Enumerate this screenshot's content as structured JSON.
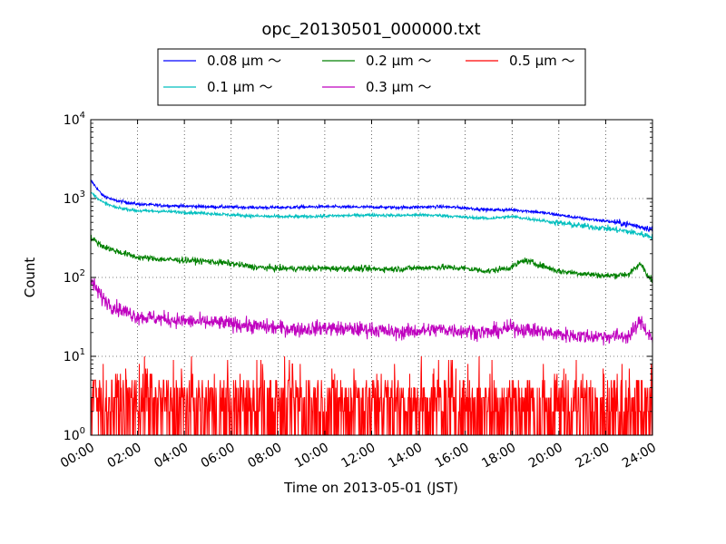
{
  "chart_data": {
    "type": "line",
    "title": "opc_20130501_000000.txt",
    "xlabel": "Time on 2013-05-01 (JST)",
    "ylabel": "Count",
    "y_scale": "log",
    "ylim": [
      1,
      10000
    ],
    "x_unit": "hours",
    "xlim": [
      0,
      24
    ],
    "x_tick_labels": [
      "00:00",
      "02:00",
      "04:00",
      "06:00",
      "08:00",
      "10:00",
      "12:00",
      "14:00",
      "16:00",
      "18:00",
      "20:00",
      "22:00",
      "24:00"
    ],
    "y_tick_labels": [
      {
        "base": "10",
        "exp": "0"
      },
      {
        "base": "10",
        "exp": "1"
      },
      {
        "base": "10",
        "exp": "2"
      },
      {
        "base": "10",
        "exp": "3"
      },
      {
        "base": "10",
        "exp": "4"
      }
    ],
    "grid": true,
    "legend_position": "top",
    "series": [
      {
        "name": "0.08 μm ～",
        "color": "#0000ff",
        "x": [
          0,
          0.5,
          1,
          2,
          3,
          4,
          5,
          6,
          7,
          8,
          9,
          10,
          11,
          12,
          13,
          14,
          15,
          16,
          17,
          18,
          19,
          20,
          21,
          22,
          23,
          24
        ],
        "y": [
          1700,
          1100,
          950,
          850,
          820,
          800,
          790,
          780,
          770,
          770,
          780,
          790,
          780,
          780,
          770,
          780,
          790,
          760,
          720,
          720,
          680,
          620,
          560,
          520,
          470,
          410
        ]
      },
      {
        "name": "0.1 μm ～",
        "color": "#00bfbf",
        "x": [
          0,
          0.5,
          1,
          2,
          3,
          4,
          5,
          6,
          7,
          8,
          9,
          10,
          11,
          12,
          13,
          14,
          15,
          16,
          17,
          18,
          19,
          20,
          21,
          22,
          23,
          24
        ],
        "y": [
          1200,
          900,
          780,
          700,
          690,
          670,
          650,
          620,
          600,
          590,
          590,
          600,
          610,
          620,
          610,
          620,
          610,
          580,
          560,
          590,
          540,
          490,
          450,
          420,
          380,
          330
        ]
      },
      {
        "name": "0.2 μm ～",
        "color": "#008000",
        "x": [
          0,
          0.5,
          1,
          2,
          3,
          4,
          5,
          6,
          7,
          8,
          9,
          10,
          11,
          12,
          13,
          14,
          15,
          16,
          17,
          18,
          18.5,
          19,
          20,
          21,
          22,
          23,
          23.5,
          24
        ],
        "y": [
          320,
          250,
          220,
          180,
          170,
          165,
          160,
          150,
          135,
          130,
          130,
          130,
          130,
          128,
          128,
          132,
          135,
          130,
          120,
          135,
          165,
          150,
          120,
          112,
          105,
          110,
          150,
          85
        ]
      },
      {
        "name": "0.3 μm ～",
        "color": "#bf00bf",
        "x": [
          0,
          0.5,
          1,
          2,
          3,
          4,
          5,
          6,
          7,
          8,
          9,
          10,
          11,
          12,
          13,
          14,
          15,
          16,
          17,
          18,
          19,
          20,
          21,
          22,
          23,
          23.5,
          24
        ],
        "y": [
          90,
          55,
          42,
          32,
          30,
          28,
          27,
          26,
          24,
          23,
          22,
          23,
          22,
          22,
          20,
          21,
          22,
          21,
          20,
          23,
          21,
          19,
          18,
          18,
          18,
          28,
          16
        ]
      },
      {
        "name": "0.5 μm ～",
        "color": "#ff0000",
        "x": [
          0,
          0.5,
          1,
          2,
          3,
          4,
          5,
          6,
          7,
          8,
          9,
          10,
          11,
          12,
          13,
          14,
          15,
          16,
          17,
          18,
          19,
          20,
          21,
          22,
          23,
          24
        ],
        "y": [
          3.5,
          3,
          3,
          3,
          3,
          3,
          3,
          3,
          3,
          3,
          3,
          3,
          3,
          3,
          3,
          3,
          3,
          3,
          3,
          3,
          3,
          3,
          3,
          3,
          3,
          3
        ]
      }
    ]
  }
}
